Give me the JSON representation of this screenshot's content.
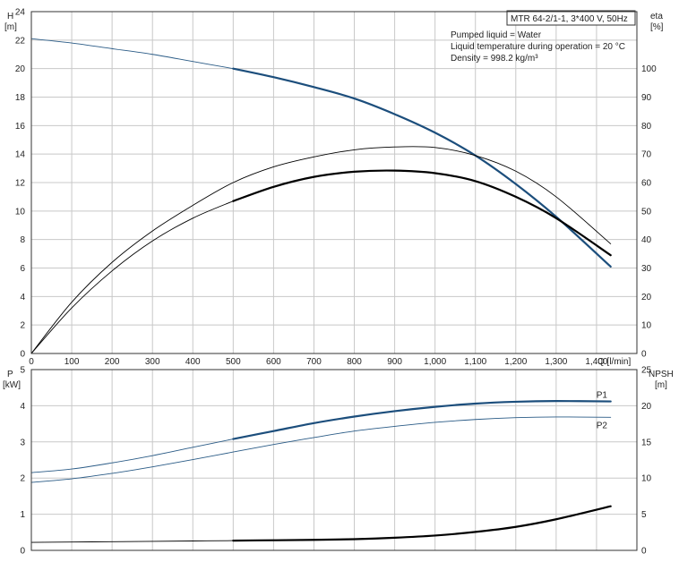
{
  "chart_data": [
    {
      "type": "line",
      "panel": "head_efficiency",
      "y_axis_label": [
        "H",
        "[m]"
      ],
      "y2_axis_label": [
        "eta",
        "[%]"
      ],
      "x_axis_label": "Q [l/min]",
      "xlim": [
        0,
        1500
      ],
      "ylim": [
        0,
        24
      ],
      "y2lim": [
        0,
        120
      ],
      "x_ticks": [
        "0",
        "100",
        "200",
        "300",
        "400",
        "500",
        "600",
        "700",
        "800",
        "900",
        "1,000",
        "1,100",
        "1,200",
        "1,300",
        "1,400"
      ],
      "y_ticks": [
        "0",
        "2",
        "4",
        "6",
        "8",
        "10",
        "12",
        "14",
        "16",
        "18",
        "20",
        "22",
        "24"
      ],
      "y2_ticks": [
        "0",
        "10",
        "20",
        "30",
        "40",
        "50",
        "60",
        "70",
        "80",
        "90",
        "100"
      ],
      "info_box_title": "MTR 64-2/1-1, 3*400 V, 50Hz",
      "info_lines": [
        "Pumped liquid = Water",
        "Liquid temperature during operation = 20 °C",
        "Density = 998.2 kg/m³"
      ],
      "series": [
        {
          "axis": "left",
          "style": "thin",
          "color": "#2a5b86",
          "x": [
            0,
            100,
            200,
            300,
            400,
            500
          ],
          "y": [
            22.1,
            21.8,
            21.4,
            21.0,
            20.5,
            20.0
          ]
        },
        {
          "axis": "left",
          "style": "thick",
          "color": "#1c4e7c",
          "x": [
            500,
            600,
            700,
            800,
            900,
            1000,
            1100,
            1200,
            1300,
            1435
          ],
          "y": [
            20.0,
            19.4,
            18.7,
            17.9,
            16.8,
            15.5,
            13.9,
            11.9,
            9.6,
            6.1
          ]
        },
        {
          "axis": "right",
          "style": "thin",
          "color": "#000000",
          "x": [
            0,
            100,
            200,
            300,
            400,
            500,
            600,
            700,
            800,
            900,
            1000,
            1100,
            1200,
            1300,
            1435
          ],
          "y": [
            0,
            18,
            32,
            43,
            52,
            60,
            65.5,
            69,
            71.5,
            72.5,
            72.3,
            69.5,
            64,
            55,
            38.5
          ]
        },
        {
          "axis": "right",
          "style": "thin",
          "color": "#000000",
          "x": [
            0,
            100,
            200,
            300,
            400,
            500
          ],
          "y": [
            0,
            16,
            29,
            39.5,
            47.5,
            53.5
          ]
        },
        {
          "axis": "right",
          "style": "thick",
          "color": "#000000",
          "x": [
            500,
            600,
            700,
            800,
            900,
            1000,
            1100,
            1200,
            1300,
            1435
          ],
          "y": [
            53.5,
            58.5,
            62,
            63.8,
            64.2,
            63.3,
            60.5,
            55,
            47.5,
            34.5
          ]
        }
      ]
    },
    {
      "type": "line",
      "panel": "power_npsh",
      "y_axis_label": [
        "P",
        "[kW]"
      ],
      "y2_axis_label": [
        "NPSH",
        "[m]"
      ],
      "xlim": [
        0,
        1500
      ],
      "ylim": [
        0,
        5
      ],
      "y2lim": [
        0,
        25
      ],
      "y_ticks": [
        "0",
        "1",
        "2",
        "3",
        "4",
        "5"
      ],
      "y2_ticks": [
        "0",
        "5",
        "10",
        "15",
        "20",
        "25"
      ],
      "series": [
        {
          "name": "P1",
          "axis": "left",
          "style": "thin",
          "color": "#2a5b86",
          "x": [
            0,
            100,
            200,
            300,
            400,
            500
          ],
          "y": [
            2.15,
            2.25,
            2.42,
            2.62,
            2.85,
            3.08
          ]
        },
        {
          "name": "P1",
          "axis": "left",
          "style": "thick",
          "color": "#1c4e7c",
          "x": [
            500,
            600,
            700,
            800,
            900,
            1000,
            1100,
            1200,
            1300,
            1435
          ],
          "y": [
            3.08,
            3.3,
            3.52,
            3.7,
            3.85,
            3.97,
            4.06,
            4.11,
            4.13,
            4.12
          ]
        },
        {
          "name": "P2",
          "axis": "left",
          "style": "thin",
          "color": "#2a5b86",
          "x": [
            0,
            100,
            200,
            300,
            400,
            500,
            600,
            700,
            800,
            900,
            1000,
            1100,
            1200,
            1300,
            1435
          ],
          "y": [
            1.88,
            1.98,
            2.13,
            2.31,
            2.51,
            2.72,
            2.93,
            3.12,
            3.3,
            3.43,
            3.54,
            3.62,
            3.67,
            3.69,
            3.68
          ]
        },
        {
          "axis": "right",
          "style": "thin",
          "color": "#000000",
          "x": [
            0,
            100,
            200,
            300,
            400,
            500
          ],
          "y": [
            1.1,
            1.15,
            1.2,
            1.25,
            1.3,
            1.35
          ]
        },
        {
          "axis": "right",
          "style": "thick",
          "color": "#000000",
          "x": [
            500,
            600,
            700,
            800,
            900,
            1000,
            1100,
            1200,
            1300,
            1435
          ],
          "y": [
            1.35,
            1.4,
            1.45,
            1.55,
            1.75,
            2.05,
            2.55,
            3.25,
            4.3,
            6.1
          ]
        }
      ]
    }
  ]
}
